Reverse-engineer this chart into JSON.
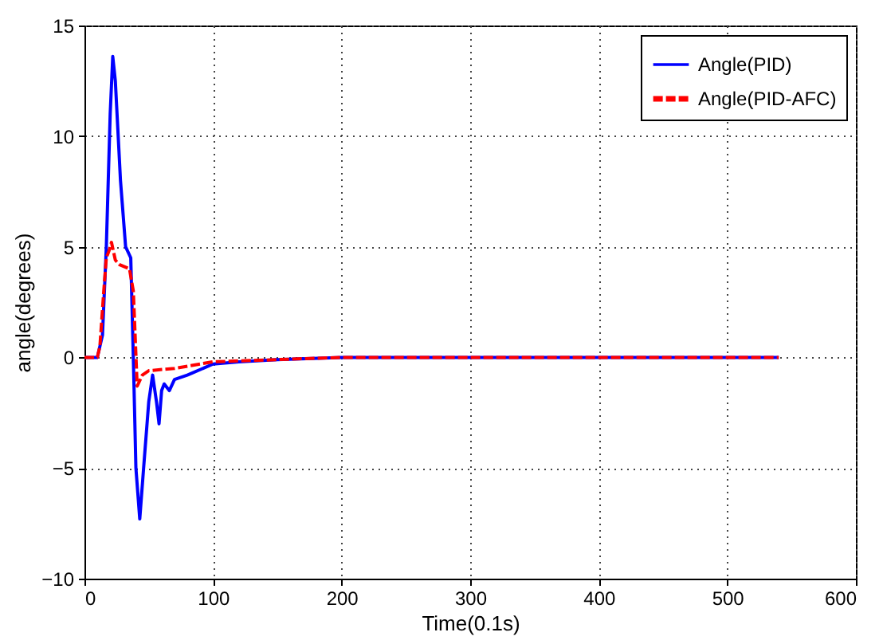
{
  "chart_data": {
    "type": "line",
    "xlabel": "Time(0.1s)",
    "ylabel": "angle(degrees)",
    "xlim": [
      0,
      600
    ],
    "xticks": [
      0,
      100,
      200,
      300,
      400,
      500,
      600
    ],
    "ylim": [
      -10,
      15
    ],
    "yticks": [
      -10,
      -5,
      0,
      5,
      10,
      15
    ],
    "grid": true,
    "legend": "top right",
    "marker": "none",
    "series": [
      {
        "name": "Angle(PID)",
        "color": "#0000ff",
        "line_style": "solid",
        "x": [
          0,
          10,
          14,
          17,
          20,
          22,
          24,
          28,
          32,
          36,
          38,
          40,
          43,
          46,
          50,
          53,
          56,
          58,
          60,
          62,
          66,
          70,
          80,
          100,
          120,
          150,
          200,
          300,
          400,
          540
        ],
        "values": [
          0,
          0,
          1,
          5,
          11,
          13.6,
          12.5,
          8,
          5,
          4.5,
          0,
          -5,
          -7.3,
          -5,
          -2,
          -0.8,
          -2,
          -3,
          -1.5,
          -1.2,
          -1.5,
          -1,
          -0.8,
          -0.3,
          -0.2,
          -0.1,
          0,
          0,
          0,
          0
        ]
      },
      {
        "name": "Angle(PID-AFC)",
        "color": "#ff0000",
        "line_style": "dashed",
        "x": [
          0,
          10,
          12,
          15,
          17,
          19,
          21,
          24,
          27,
          35,
          38,
          41,
          45,
          50,
          70,
          100,
          150,
          200,
          300,
          400,
          540
        ],
        "values": [
          0,
          0,
          0.5,
          3,
          4.5,
          4.8,
          5.2,
          4.4,
          4.2,
          4,
          3,
          -1.3,
          -0.8,
          -0.6,
          -0.5,
          -0.2,
          -0.1,
          0,
          0,
          0,
          0
        ]
      }
    ]
  }
}
